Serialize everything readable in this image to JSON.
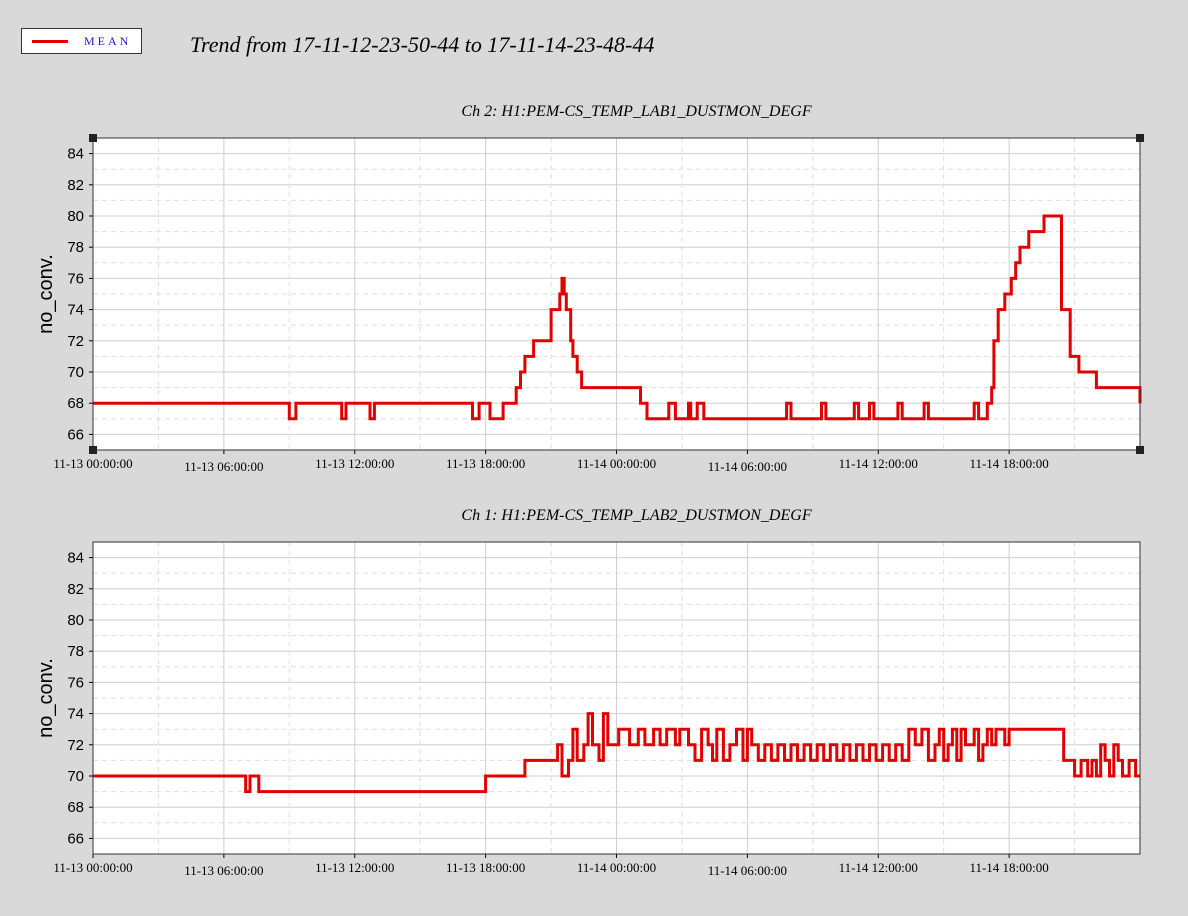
{
  "legend": {
    "label": "MEAN",
    "color": "#e00000"
  },
  "main_title": "Trend from 17-11-12-23-50-44 to 17-11-14-23-48-44",
  "chart_data": [
    {
      "type": "line",
      "title": "Ch 2: H1:PEM-CS_TEMP_LAB1_DUSTMON_DEGF",
      "xlabel": "",
      "ylabel": "no_conv.",
      "ylim": [
        65,
        85
      ],
      "yticks": [
        66,
        68,
        70,
        72,
        74,
        76,
        78,
        80,
        82,
        84
      ],
      "xlim": [
        0,
        48
      ],
      "xticks": [
        0,
        6,
        12,
        18,
        24,
        30,
        36,
        42
      ],
      "xtick_labels": [
        "11-13 00:00:00",
        "11-13 06:00:00",
        "11-13 12:00:00",
        "11-13 18:00:00",
        "11-14 00:00:00",
        "11-14 06:00:00",
        "11-14 12:00:00",
        "11-14 18:00:00"
      ],
      "x_unit": "hours after 11-13 00:00:00",
      "grid": true,
      "step": true,
      "series": [
        {
          "name": "MEAN",
          "color": "#e00000",
          "x": [
            0,
            9.0,
            9.3,
            11.4,
            11.6,
            12.7,
            12.9,
            17.4,
            17.7,
            18.2,
            18.8,
            19.4,
            19.6,
            19.8,
            20.0,
            20.2,
            20.5,
            21.0,
            21.4,
            21.5,
            21.6,
            21.7,
            21.9,
            22.0,
            22.2,
            22.4,
            23.0,
            25.1,
            25.4,
            26.4,
            26.7,
            27.3,
            27.4,
            27.7,
            28.0,
            31.8,
            32.0,
            33.4,
            33.6,
            34.9,
            35.1,
            35.6,
            35.8,
            36.9,
            37.1,
            38.1,
            38.3,
            40.4,
            40.6,
            41.0,
            41.2,
            41.3,
            41.5,
            41.7,
            41.8,
            42.1,
            42.3,
            42.5,
            42.9,
            43.6,
            44.2,
            44.4,
            44.8,
            45.2,
            46.0,
            48.0
          ],
          "y": [
            68,
            67,
            68,
            67,
            68,
            67,
            68,
            67,
            68,
            67,
            68,
            69,
            70,
            71,
            71,
            72,
            72,
            74,
            75,
            76,
            75,
            74,
            72,
            71,
            70,
            69,
            69,
            68,
            67,
            68,
            67,
            68,
            67,
            68,
            67,
            68,
            67,
            68,
            67,
            68,
            67,
            68,
            67,
            68,
            67,
            68,
            67,
            68,
            67,
            68,
            69,
            72,
            74,
            74,
            75,
            76,
            77,
            78,
            79,
            80,
            80,
            74,
            71,
            70,
            69,
            68
          ]
        }
      ]
    },
    {
      "type": "line",
      "title": "Ch 1: H1:PEM-CS_TEMP_LAB2_DUSTMON_DEGF",
      "xlabel": "",
      "ylabel": "no_conv.",
      "ylim": [
        65,
        85
      ],
      "yticks": [
        66,
        68,
        70,
        72,
        74,
        76,
        78,
        80,
        82,
        84
      ],
      "xlim": [
        0,
        48
      ],
      "xticks": [
        0,
        6,
        12,
        18,
        24,
        30,
        36,
        42
      ],
      "xtick_labels": [
        "11-13 00:00:00",
        "11-13 06:00:00",
        "11-13 12:00:00",
        "11-13 18:00:00",
        "11-14 00:00:00",
        "11-14 06:00:00",
        "11-14 12:00:00",
        "11-14 18:00:00"
      ],
      "x_unit": "hours after 11-13 00:00:00",
      "grid": true,
      "step": true,
      "series": [
        {
          "name": "MEAN",
          "color": "#e00000",
          "x": [
            0,
            7.0,
            7.2,
            7.6,
            18.0,
            19.8,
            21.3,
            21.5,
            21.8,
            22.0,
            22.2,
            22.5,
            22.7,
            22.9,
            23.2,
            23.4,
            23.6,
            23.8,
            24.1,
            24.6,
            25.0,
            25.3,
            25.7,
            26.0,
            26.3,
            26.7,
            26.9,
            27.3,
            27.6,
            27.9,
            28.2,
            28.4,
            28.6,
            28.9,
            29.2,
            29.5,
            29.8,
            30.0,
            30.2,
            30.5,
            30.8,
            31.1,
            31.4,
            31.7,
            32.0,
            32.3,
            32.6,
            32.9,
            33.2,
            33.5,
            33.8,
            34.1,
            34.4,
            34.7,
            35.0,
            35.3,
            35.6,
            35.9,
            36.2,
            36.5,
            36.8,
            37.1,
            37.4,
            37.7,
            38.0,
            38.3,
            38.6,
            38.8,
            39.0,
            39.2,
            39.4,
            39.6,
            39.8,
            40.0,
            40.2,
            40.4,
            40.6,
            40.8,
            41.0,
            41.2,
            41.4,
            41.6,
            41.8,
            42.0,
            44.5,
            45.0,
            45.3,
            45.6,
            45.8,
            46.0,
            46.2,
            46.4,
            46.6,
            46.8,
            47.0,
            47.2,
            47.5,
            47.8,
            48.0
          ],
          "y": [
            70,
            69,
            70,
            69,
            70,
            71,
            72,
            70,
            71,
            73,
            71,
            72,
            74,
            72,
            71,
            74,
            72,
            72,
            73,
            72,
            73,
            72,
            73,
            72,
            73,
            72,
            73,
            72,
            71,
            73,
            72,
            71,
            73,
            71,
            72,
            73,
            71,
            73,
            72,
            71,
            72,
            71,
            72,
            71,
            72,
            71,
            72,
            71,
            72,
            71,
            72,
            71,
            72,
            71,
            72,
            71,
            72,
            71,
            72,
            71,
            72,
            71,
            73,
            72,
            73,
            71,
            72,
            73,
            71,
            72,
            73,
            71,
            73,
            72,
            72,
            73,
            71,
            72,
            73,
            72,
            73,
            73,
            72,
            73,
            71,
            70,
            71,
            70,
            71,
            70,
            72,
            71,
            70,
            72,
            71,
            70,
            71,
            70,
            70
          ]
        }
      ]
    }
  ]
}
